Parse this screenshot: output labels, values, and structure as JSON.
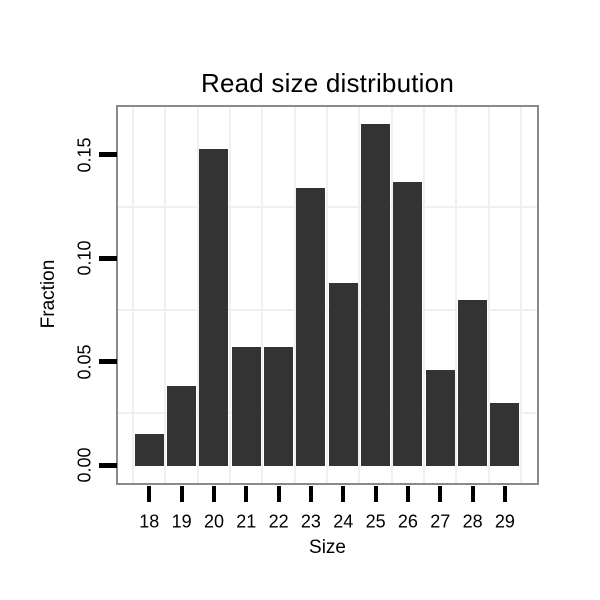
{
  "chart_data": {
    "type": "bar",
    "title": "Read size distribution",
    "xlabel": "Size",
    "ylabel": "Fraction",
    "categories": [
      "18",
      "19",
      "20",
      "21",
      "22",
      "23",
      "24",
      "25",
      "26",
      "27",
      "28",
      "29"
    ],
    "values": [
      0.015,
      0.038,
      0.153,
      0.057,
      0.057,
      0.134,
      0.088,
      0.165,
      0.137,
      0.046,
      0.08,
      0.03
    ],
    "ylim": [
      0,
      0.173
    ],
    "yticks": [
      {
        "value": 0.0,
        "label": "0.00"
      },
      {
        "value": 0.05,
        "label": "0.05"
      },
      {
        "value": 0.1,
        "label": "0.10"
      },
      {
        "value": 0.15,
        "label": "0.15"
      }
    ],
    "y_minor_gridlines": [
      0.025,
      0.075,
      0.125
    ],
    "x_minor_gridlines_between_categories": true,
    "grid": "minor-only",
    "legend": "none",
    "ytick_labels_rotated": true,
    "colors": {
      "bar": "#333333",
      "panel_border": "#8a8a8a",
      "panel_background": "#ffffff",
      "grid_minor": "#f0f0f0",
      "tick": "#000000",
      "text": "#000000",
      "background": "#ffffff"
    }
  }
}
